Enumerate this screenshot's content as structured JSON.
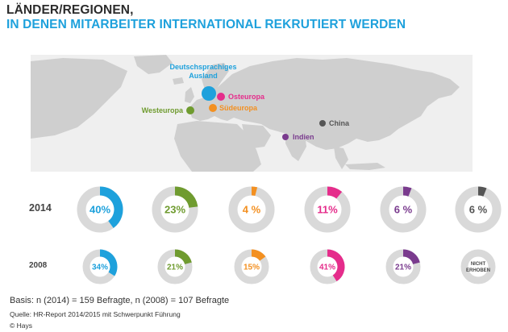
{
  "title_line1": "LÄNDER/REGIONEN,",
  "title_line2": "IN DENEN MITARBEITER INTERNATIONAL REKRUTIERT WERDEN",
  "map": {
    "regions": [
      {
        "label_lines": [
          "Deutschsprachiges",
          "Ausland"
        ],
        "color": "#1ea1dc"
      },
      {
        "label_lines": [
          "Osteuropa"
        ],
        "color": "#e52c8b"
      },
      {
        "label_lines": [
          "Westeuropa"
        ],
        "color": "#6f9b2f"
      },
      {
        "label_lines": [
          "Südeuropa"
        ],
        "color": "#f39021"
      },
      {
        "label_lines": [
          "China"
        ],
        "color": "#555555"
      },
      {
        "label_lines": [
          "Indien"
        ],
        "color": "#7a3b8e"
      }
    ]
  },
  "chart_data": {
    "type": "donut",
    "categories": [
      "Deutschsprachiges Ausland",
      "Westeuropa",
      "Südeuropa",
      "Osteuropa",
      "Indien",
      "China"
    ],
    "colors": [
      "#1ea1dc",
      "#6f9b2f",
      "#f39021",
      "#e52c8b",
      "#7a3b8e",
      "#555555"
    ],
    "series": [
      {
        "name": "2014",
        "values": [
          40,
          23,
          4,
          11,
          6,
          6
        ],
        "labels": [
          "40%",
          "23%",
          "4 %",
          "11%",
          "6 %",
          "6 %"
        ]
      },
      {
        "name": "2008",
        "values": [
          34,
          21,
          15,
          41,
          21,
          null
        ],
        "labels": [
          "34%",
          "21%",
          "15%",
          "41%",
          "21%",
          null
        ]
      }
    ],
    "not_collected_label_lines": [
      "NICHT",
      "ERHOBEN"
    ],
    "unit": "%"
  },
  "footer": {
    "basis": "Basis: n (2014) = 159 Befragte, n (2008) = 107 Befragte",
    "quelle": "Quelle: HR-Report 2014/2015 mit Schwerpunkt Führung",
    "copyright": "© Hays"
  }
}
